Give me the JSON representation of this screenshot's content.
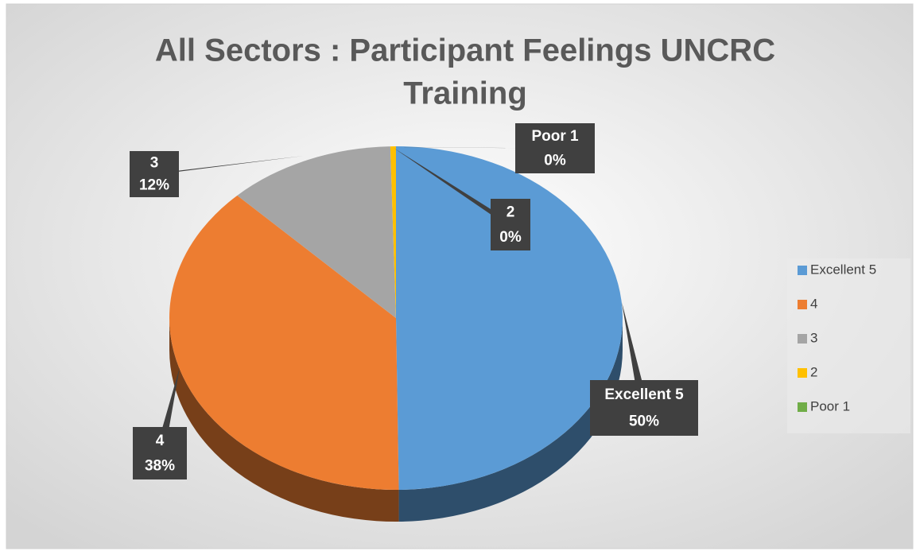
{
  "chart_data": {
    "type": "pie",
    "title": [
      "All Sectors  : Participant  Feelings UNCRC",
      "Training"
    ],
    "categories": [
      "Excellent 5",
      "4",
      "3",
      "2",
      "Poor  1"
    ],
    "values": [
      50,
      38,
      12,
      0.4,
      0
    ],
    "value_labels": [
      "50%",
      "38%",
      "12%",
      "0%",
      "0%"
    ],
    "colors": [
      "#5b9bd5",
      "#ed7d31",
      "#a5a5a5",
      "#ffc000",
      "#70ad47"
    ],
    "legend": "right"
  }
}
